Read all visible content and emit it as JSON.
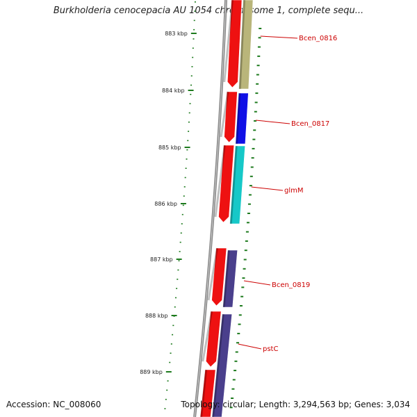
{
  "title": "Burkholderia cenocepacia AU 1054 chromosome 1, complete sequ...",
  "accession_line": "Accession: NC_008060",
  "summary_line": "Topology: circular; Length: 3,294,563 bp; Genes: 3,034",
  "ticks": [
    {
      "label": "883 kbp"
    },
    {
      "label": "884 kbp"
    },
    {
      "label": "885 kbp"
    },
    {
      "label": "886 kbp"
    },
    {
      "label": "887 kbp"
    },
    {
      "label": "888 kbp"
    },
    {
      "label": "889 kbp"
    }
  ],
  "genes": [
    {
      "name": "Bcen_0816",
      "color": "#b9b57a"
    },
    {
      "name": "Bcen_0817",
      "color": "#1010e6"
    },
    {
      "name": "glmM",
      "color": "#16c8c8"
    },
    {
      "name": "Bcen_0819",
      "color": "#4a3f8c"
    },
    {
      "name": "pstC",
      "color": "#4a3f8c"
    }
  ],
  "colors": {
    "backbone": "#8a8a8a",
    "cds_strand": "#ee1111",
    "label_text": "#cc0000",
    "tick_marks": "#1d7a1d"
  }
}
